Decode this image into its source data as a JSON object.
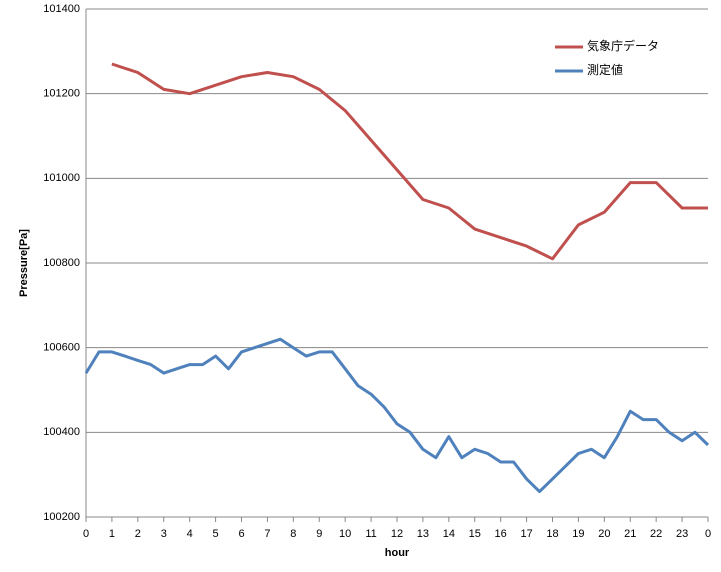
{
  "chart_data": {
    "type": "line",
    "xlabel": "hour",
    "ylabel": "Pressure[Pa]",
    "xlim": [
      0,
      24
    ],
    "xticks": [
      0,
      1,
      2,
      3,
      4,
      5,
      6,
      7,
      8,
      9,
      10,
      11,
      12,
      13,
      14,
      15,
      16,
      17,
      18,
      19,
      20,
      21,
      22,
      23,
      {
        "value": 24,
        "label": "0"
      }
    ],
    "ylim": [
      100200,
      101400
    ],
    "yticks": [
      100200,
      100400,
      100600,
      100800,
      101000,
      101200,
      101400
    ],
    "grid": true,
    "legend": "upper right",
    "series": [
      {
        "name": "気象庁データ",
        "color": "#c0504d",
        "x": [
          1,
          2,
          3,
          4,
          5,
          6,
          7,
          8,
          9,
          10,
          11,
          12,
          13,
          14,
          15,
          16,
          17,
          18,
          19,
          20,
          21,
          22,
          23,
          24
        ],
        "values": [
          101270,
          101250,
          101210,
          101200,
          101220,
          101240,
          101250,
          101240,
          101210,
          101160,
          101090,
          101020,
          100950,
          100930,
          100880,
          100860,
          100840,
          100810,
          100890,
          100920,
          100990,
          100990,
          100930,
          100930
        ]
      },
      {
        "name": "測定値",
        "color": "#4f81bd",
        "x": [
          0,
          0.5,
          1,
          1.5,
          2,
          2.5,
          3,
          3.5,
          4,
          4.5,
          5,
          5.5,
          6,
          6.5,
          7,
          7.5,
          8,
          8.5,
          9,
          9.5,
          10,
          10.5,
          11,
          11.5,
          12,
          12.5,
          13,
          13.5,
          14,
          14.5,
          15,
          15.5,
          16,
          16.5,
          17,
          17.5,
          18,
          18.5,
          19,
          19.5,
          20,
          20.5,
          21,
          21.5,
          22,
          22.5,
          23,
          23.5,
          24
        ],
        "values": [
          100540,
          100590,
          100590,
          100580,
          100570,
          100560,
          100540,
          100550,
          100560,
          100560,
          100580,
          100550,
          100590,
          100600,
          100610,
          100620,
          100600,
          100580,
          100590,
          100590,
          100550,
          100510,
          100490,
          100460,
          100420,
          100400,
          100360,
          100340,
          100390,
          100340,
          100360,
          100350,
          100330,
          100330,
          100290,
          100260,
          100290,
          100320,
          100350,
          100360,
          100340,
          100390,
          100450,
          100430,
          100430,
          100400,
          100380,
          100400,
          100370
        ]
      }
    ]
  }
}
